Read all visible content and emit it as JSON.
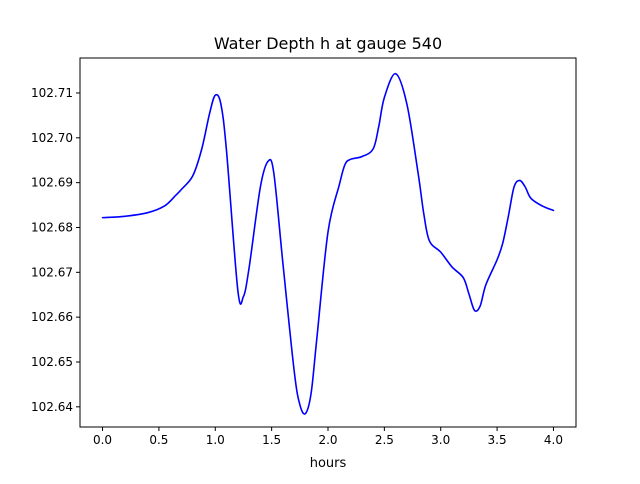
{
  "chart_data": {
    "type": "line",
    "title": "Water Depth h at gauge 540",
    "xlabel": "hours",
    "ylabel": "",
    "xlim": [
      -0.2,
      4.2
    ],
    "ylim": [
      102.6355,
      102.7178
    ],
    "grid": false,
    "x_ticks": [
      0.0,
      0.5,
      1.0,
      1.5,
      2.0,
      2.5,
      3.0,
      3.5,
      4.0
    ],
    "x_tick_labels": [
      "0.0",
      "0.5",
      "1.0",
      "1.5",
      "2.0",
      "2.5",
      "3.0",
      "3.5",
      "4.0"
    ],
    "y_ticks": [
      102.64,
      102.65,
      102.66,
      102.67,
      102.68,
      102.69,
      102.7,
      102.71
    ],
    "y_tick_labels": [
      "102.64",
      "102.65",
      "102.66",
      "102.67",
      "102.68",
      "102.69",
      "102.70",
      "102.71"
    ],
    "series": [
      {
        "color": "#0000ff",
        "x": [
          0.0,
          0.2,
          0.4,
          0.55,
          0.65,
          0.7,
          0.8,
          0.88,
          0.95,
          1.0,
          1.05,
          1.1,
          1.2,
          1.25,
          1.3,
          1.4,
          1.47,
          1.52,
          1.6,
          1.7,
          1.75,
          1.8,
          1.85,
          1.9,
          2.0,
          2.1,
          2.15,
          2.2,
          2.3,
          2.4,
          2.45,
          2.5,
          2.6,
          2.7,
          2.8,
          2.85,
          2.9,
          3.0,
          3.1,
          3.2,
          3.25,
          3.3,
          3.35,
          3.4,
          3.5,
          3.55,
          3.6,
          3.65,
          3.7,
          3.75,
          3.8,
          3.9,
          4.0
        ],
        "y": [
          102.6822,
          102.6825,
          102.6833,
          102.6848,
          102.6872,
          102.6885,
          102.6915,
          102.6975,
          102.7055,
          102.7095,
          102.7075,
          102.697,
          102.666,
          102.6646,
          102.671,
          102.689,
          102.6948,
          102.692,
          102.672,
          102.648,
          102.6405,
          102.6385,
          102.643,
          102.655,
          102.679,
          102.6895,
          102.694,
          102.6952,
          102.6958,
          102.6975,
          102.7025,
          102.709,
          102.7143,
          102.7075,
          102.692,
          102.683,
          102.677,
          102.6745,
          102.6712,
          102.6688,
          102.6652,
          102.6615,
          102.6625,
          102.6672,
          102.6728,
          102.6765,
          102.6825,
          102.689,
          102.6905,
          102.689,
          102.6865,
          102.6848,
          102.6838
        ]
      }
    ]
  }
}
